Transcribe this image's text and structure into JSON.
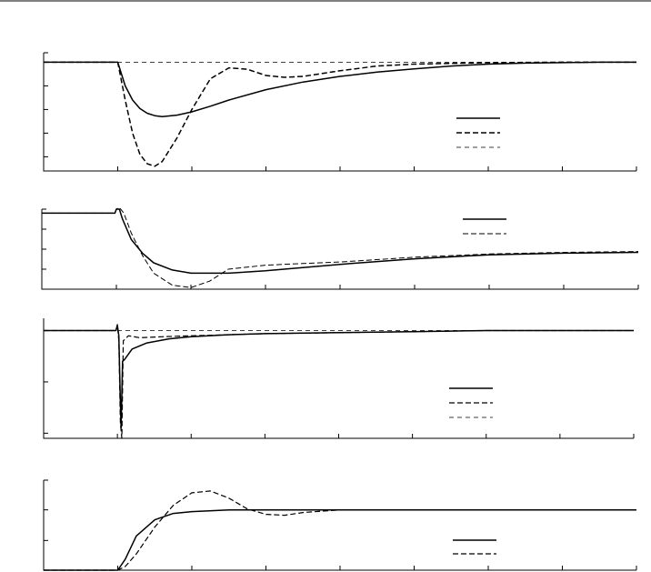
{
  "chart_data": [
    {
      "type": "line",
      "title": "",
      "xlabel": "",
      "ylabel": "",
      "xlim": [
        -1,
        7
      ],
      "ylim": [
        -2.3,
        0.2
      ],
      "xticks": [
        -1,
        0,
        1,
        2,
        3,
        4,
        5,
        6,
        7
      ],
      "yticks": [
        -2.0,
        -1.5,
        -1.0,
        -0.5,
        0.0,
        0.2
      ],
      "tick_labels_visible": false,
      "grid": false,
      "legend": {
        "position": "right",
        "entries": 3,
        "names_visible": false
      },
      "series": [
        {
          "style": "solid",
          "width": 1.5,
          "x": [
            -1,
            0,
            0.1,
            0.2,
            0.3,
            0.4,
            0.5,
            0.6,
            0.8,
            1,
            1.25,
            1.5,
            2,
            2.5,
            3,
            3.5,
            4,
            4.5,
            5,
            5.5,
            6,
            6.5,
            7
          ],
          "y": [
            0,
            0,
            -0.5,
            -0.8,
            -0.98,
            -1.08,
            -1.13,
            -1.15,
            -1.12,
            -1.05,
            -0.93,
            -0.8,
            -0.58,
            -0.42,
            -0.3,
            -0.21,
            -0.14,
            -0.08,
            -0.04,
            -0.02,
            -0.01,
            0,
            0
          ]
        },
        {
          "style": "dashed",
          "width": 1.5,
          "x": [
            -1,
            0,
            0.1,
            0.2,
            0.3,
            0.4,
            0.5,
            0.6,
            0.8,
            1,
            1.25,
            1.5,
            1.75,
            2,
            2.25,
            2.5,
            3,
            3.5,
            4,
            5,
            6,
            7
          ],
          "y": [
            0,
            0,
            -0.8,
            -1.5,
            -1.95,
            -2.15,
            -2.2,
            -2.1,
            -1.6,
            -1.0,
            -0.35,
            -0.12,
            -0.15,
            -0.28,
            -0.32,
            -0.3,
            -0.18,
            -0.08,
            -0.04,
            -0.01,
            0,
            0
          ]
        },
        {
          "style": "dashed-thin",
          "width": 0.8,
          "x": [
            -1,
            7
          ],
          "y": [
            0,
            0
          ]
        }
      ]
    },
    {
      "type": "line",
      "title": "",
      "xlabel": "",
      "ylabel": "",
      "xlim": [
        -1,
        7
      ],
      "ylim": [
        0,
        1.0
      ],
      "xticks": [
        -1,
        0,
        1,
        2,
        3,
        4,
        5,
        6,
        7
      ],
      "yticks": [
        0,
        0.25,
        0.5,
        0.75,
        1.0
      ],
      "tick_labels_visible": false,
      "grid": false,
      "legend": {
        "position": "top-right",
        "entries": 2,
        "names_visible": false
      },
      "series": [
        {
          "style": "solid",
          "width": 1.5,
          "x": [
            -1,
            -0.02,
            0,
            0.04,
            0.08,
            0.2,
            0.35,
            0.5,
            0.75,
            1,
            1.5,
            2,
            2.5,
            3,
            4,
            5,
            6,
            7
          ],
          "y": [
            0.95,
            0.95,
            1.0,
            1.0,
            0.88,
            0.62,
            0.45,
            0.33,
            0.24,
            0.2,
            0.2,
            0.23,
            0.27,
            0.31,
            0.38,
            0.43,
            0.45,
            0.46
          ]
        },
        {
          "style": "dashed",
          "width": 1.0,
          "x": [
            -1,
            -0.02,
            0,
            0.04,
            0.1,
            0.2,
            0.35,
            0.5,
            0.75,
            1,
            1.25,
            1.5,
            2,
            2.5,
            3,
            4,
            5,
            6,
            7
          ],
          "y": [
            0.95,
            0.95,
            1.0,
            1.02,
            0.95,
            0.7,
            0.42,
            0.2,
            0.05,
            0.02,
            0.1,
            0.25,
            0.3,
            0.32,
            0.34,
            0.4,
            0.44,
            0.46,
            0.47
          ]
        }
      ]
    },
    {
      "type": "line",
      "title": "",
      "xlabel": "",
      "ylabel": "",
      "xlim": [
        -1,
        7
      ],
      "ylim": [
        -1.05,
        0.12
      ],
      "xticks": [
        -1,
        0,
        1,
        2,
        3,
        4,
        5,
        6,
        7
      ],
      "yticks": [
        -1.0,
        -0.5,
        0.0
      ],
      "tick_labels_visible": false,
      "grid": false,
      "legend": {
        "position": "right",
        "entries": 3,
        "names_visible": false
      },
      "series": [
        {
          "style": "solid",
          "width": 1.5,
          "x": [
            -1,
            -0.02,
            0,
            0.02,
            0.04,
            0.05,
            0.07,
            0.1,
            0.2,
            0.4,
            0.7,
            1,
            1.5,
            2,
            3,
            4,
            5,
            6,
            7
          ],
          "y": [
            0,
            0,
            0.05,
            -0.05,
            -0.7,
            -0.95,
            -0.3,
            -0.28,
            -0.18,
            -0.12,
            -0.08,
            -0.06,
            -0.04,
            -0.03,
            -0.02,
            -0.01,
            0,
            0,
            0
          ]
        },
        {
          "style": "dashed",
          "width": 1.2,
          "x": [
            -1,
            -0.02,
            0,
            0.02,
            0.04,
            0.06,
            0.08,
            0.15,
            0.3,
            0.6,
            1,
            1.5,
            2,
            3,
            4,
            5,
            6,
            7
          ],
          "y": [
            0,
            0,
            0.06,
            -0.1,
            -0.9,
            -1.05,
            -0.1,
            -0.05,
            -0.07,
            -0.06,
            -0.05,
            -0.04,
            -0.03,
            -0.02,
            -0.01,
            0,
            0,
            0
          ]
        },
        {
          "style": "dashed-thin",
          "width": 0.8,
          "x": [
            -1,
            7
          ],
          "y": [
            0,
            0
          ]
        }
      ]
    },
    {
      "type": "line",
      "title": "",
      "xlabel": "",
      "ylabel": "",
      "xlim": [
        -1,
        7
      ],
      "ylim": [
        0,
        1.0
      ],
      "xticks": [
        -1,
        0,
        1,
        2,
        3,
        4,
        5,
        6,
        7
      ],
      "yticks": [
        0,
        0.33,
        0.67,
        1.0
      ],
      "tick_labels_visible": false,
      "grid": false,
      "legend": {
        "position": "bottom-right",
        "entries": 2,
        "names_visible": false
      },
      "series": [
        {
          "style": "solid",
          "width": 1.5,
          "x": [
            -1,
            0,
            0.1,
            0.25,
            0.5,
            0.75,
            1,
            1.5,
            2,
            3,
            4,
            5,
            6,
            7
          ],
          "y": [
            0,
            0,
            0.12,
            0.38,
            0.56,
            0.63,
            0.65,
            0.67,
            0.67,
            0.67,
            0.67,
            0.67,
            0.67,
            0.67
          ]
        },
        {
          "style": "dashed",
          "width": 1.2,
          "x": [
            -1,
            0,
            0.1,
            0.25,
            0.5,
            0.75,
            1,
            1.25,
            1.5,
            1.75,
            2,
            2.25,
            2.5,
            3,
            3.5,
            4,
            5,
            6,
            7
          ],
          "y": [
            0,
            0,
            0.04,
            0.18,
            0.48,
            0.72,
            0.86,
            0.88,
            0.8,
            0.68,
            0.62,
            0.61,
            0.64,
            0.67,
            0.67,
            0.67,
            0.67,
            0.67,
            0.67
          ]
        }
      ]
    }
  ]
}
